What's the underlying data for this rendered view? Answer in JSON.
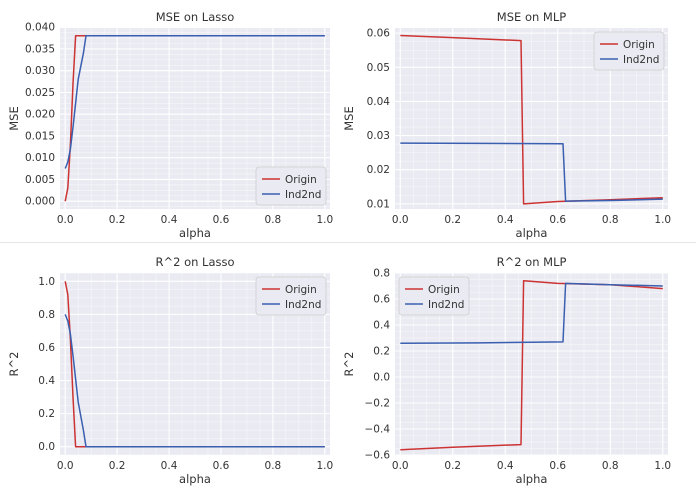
{
  "chart_data": [
    {
      "type": "line",
      "title": "MSE on Lasso",
      "xlabel": "alpha",
      "ylabel": "MSE",
      "xlim": [
        -0.02,
        1.02
      ],
      "ylim": [
        -0.0018,
        0.0398
      ],
      "xticks": [
        0.0,
        0.2,
        0.4,
        0.6,
        0.8,
        1.0
      ],
      "xtick_labels": [
        "0.0",
        "0.2",
        "0.4",
        "0.6",
        "0.8",
        "1.0"
      ],
      "yticks": [
        0.0,
        0.005,
        0.01,
        0.015,
        0.02,
        0.025,
        0.03,
        0.035,
        0.04
      ],
      "ytick_labels": [
        "0.000",
        "0.005",
        "0.010",
        "0.015",
        "0.020",
        "0.025",
        "0.030",
        "0.035",
        "0.040"
      ],
      "legend_position": "bottom-right",
      "series": [
        {
          "name": "Origin",
          "color": "#cc3333",
          "x": [
            0.0,
            0.01,
            0.02,
            0.03,
            0.04,
            1.0
          ],
          "y": [
            0.0,
            0.003,
            0.013,
            0.027,
            0.038,
            0.038
          ]
        },
        {
          "name": "Ind2nd",
          "color": "#3a5fb0",
          "x": [
            0.0,
            0.01,
            0.02,
            0.03,
            0.05,
            0.07,
            0.08,
            1.0
          ],
          "y": [
            0.0075,
            0.009,
            0.012,
            0.017,
            0.028,
            0.034,
            0.038,
            0.038
          ]
        }
      ]
    },
    {
      "type": "line",
      "title": "MSE on MLP",
      "xlabel": "alpha",
      "ylabel": "MSE",
      "xlim": [
        -0.02,
        1.02
      ],
      "ylim": [
        0.0085,
        0.0615
      ],
      "xticks": [
        0.0,
        0.2,
        0.4,
        0.6,
        0.8,
        1.0
      ],
      "xtick_labels": [
        "0.0",
        "0.2",
        "0.4",
        "0.6",
        "0.8",
        "1.0"
      ],
      "yticks": [
        0.01,
        0.02,
        0.03,
        0.04,
        0.05,
        0.06
      ],
      "ytick_labels": [
        "0.01",
        "0.02",
        "0.03",
        "0.04",
        "0.05",
        "0.06"
      ],
      "legend_position": "top-right",
      "series": [
        {
          "name": "Origin",
          "color": "#cc3333",
          "x": [
            0.0,
            0.2,
            0.46,
            0.47,
            0.6,
            0.8,
            1.0
          ],
          "y": [
            0.0593,
            0.0587,
            0.0578,
            0.01,
            0.0107,
            0.0112,
            0.0118
          ]
        },
        {
          "name": "Ind2nd",
          "color": "#3a5fb0",
          "x": [
            0.0,
            0.3,
            0.62,
            0.63,
            0.8,
            1.0
          ],
          "y": [
            0.0278,
            0.0277,
            0.0276,
            0.0108,
            0.011,
            0.0114
          ]
        }
      ]
    },
    {
      "type": "line",
      "title": "R^2 on Lasso",
      "xlabel": "alpha",
      "ylabel": "R^2",
      "xlim": [
        -0.02,
        1.02
      ],
      "ylim": [
        -0.05,
        1.05
      ],
      "xticks": [
        0.0,
        0.2,
        0.4,
        0.6,
        0.8,
        1.0
      ],
      "xtick_labels": [
        "0.0",
        "0.2",
        "0.4",
        "0.6",
        "0.8",
        "1.0"
      ],
      "yticks": [
        0.0,
        0.2,
        0.4,
        0.6,
        0.8,
        1.0
      ],
      "ytick_labels": [
        "0.0",
        "0.2",
        "0.4",
        "0.6",
        "0.8",
        "1.0"
      ],
      "legend_position": "top-right",
      "series": [
        {
          "name": "Origin",
          "color": "#cc3333",
          "x": [
            0.0,
            0.01,
            0.02,
            0.03,
            0.04,
            1.0
          ],
          "y": [
            1.0,
            0.92,
            0.65,
            0.3,
            0.0,
            0.0
          ]
        },
        {
          "name": "Ind2nd",
          "color": "#3a5fb0",
          "x": [
            0.0,
            0.01,
            0.02,
            0.03,
            0.05,
            0.07,
            0.08,
            1.0
          ],
          "y": [
            0.8,
            0.76,
            0.68,
            0.55,
            0.27,
            0.1,
            0.0,
            0.0
          ]
        }
      ]
    },
    {
      "type": "line",
      "title": "R^2 on MLP",
      "xlabel": "alpha",
      "ylabel": "R^2",
      "xlim": [
        -0.02,
        1.02
      ],
      "ylim": [
        -0.6,
        0.8
      ],
      "xticks": [
        0.0,
        0.2,
        0.4,
        0.6,
        0.8,
        1.0
      ],
      "xtick_labels": [
        "0.0",
        "0.2",
        "0.4",
        "0.6",
        "0.8",
        "1.0"
      ],
      "yticks": [
        -0.6,
        -0.4,
        -0.2,
        0.0,
        0.2,
        0.4,
        0.6,
        0.8
      ],
      "ytick_labels": [
        "−0.6",
        "−0.4",
        "−0.2",
        "0.0",
        "0.2",
        "0.4",
        "0.6",
        "0.8"
      ],
      "legend_position": "top-left",
      "series": [
        {
          "name": "Origin",
          "color": "#cc3333",
          "x": [
            0.0,
            0.2,
            0.46,
            0.47,
            0.6,
            0.8,
            1.0
          ],
          "y": [
            -0.56,
            -0.54,
            -0.52,
            0.74,
            0.72,
            0.71,
            0.68
          ]
        },
        {
          "name": "Ind2nd",
          "color": "#3a5fb0",
          "x": [
            0.0,
            0.3,
            0.62,
            0.63,
            0.8,
            1.0
          ],
          "y": [
            0.26,
            0.262,
            0.27,
            0.72,
            0.71,
            0.7
          ]
        }
      ]
    }
  ]
}
